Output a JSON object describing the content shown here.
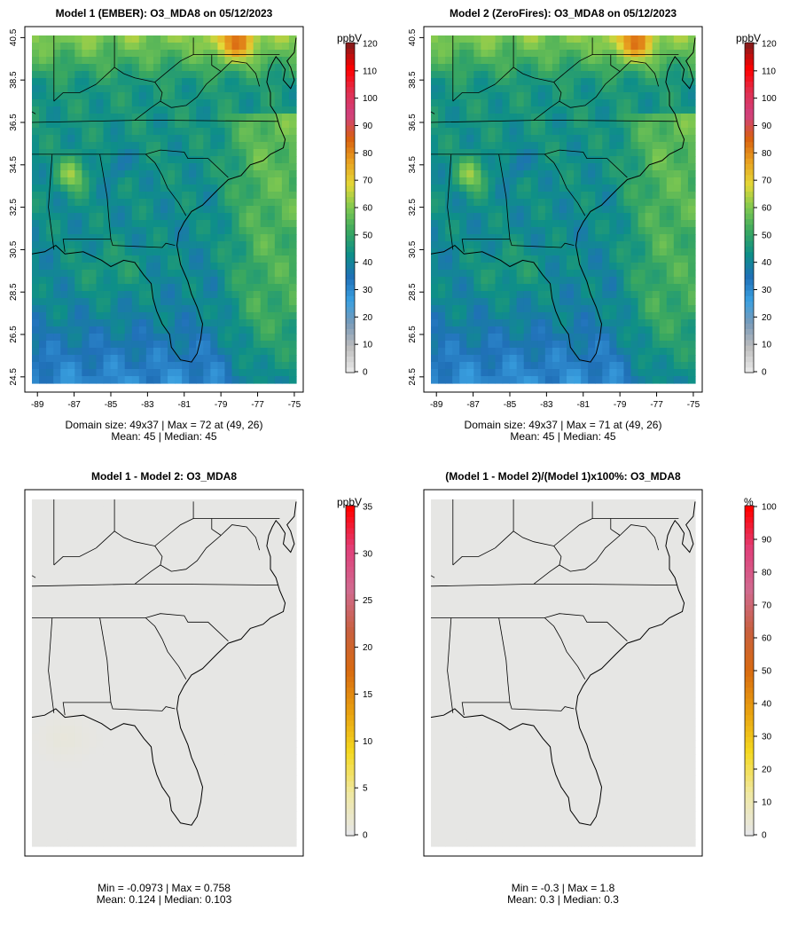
{
  "panels": [
    {
      "id": "p1",
      "title": "Model 1 (EMBER): O3_MDA8 on 05/12/2023",
      "stats_line1": "Domain size: 49x37 | Max = 72 at (49, 26)",
      "stats_line2": "Mean: 45 |  Median: 45",
      "unit": "ppbV",
      "field": "ozone",
      "x_ticks": [
        "-89",
        "-87",
        "-85",
        "-83",
        "-81",
        "-79",
        "-77",
        "-75"
      ],
      "y_ticks": [
        "24.5",
        "26.5",
        "28.5",
        "30.5",
        "32.5",
        "34.5",
        "36.5",
        "38.5",
        "40.5"
      ],
      "colorbar_ticks": [
        "0",
        "10",
        "20",
        "30",
        "40",
        "50",
        "60",
        "70",
        "80",
        "90",
        "100",
        "110",
        "120"
      ],
      "colorbar_range": [
        0,
        120
      ]
    },
    {
      "id": "p2",
      "title": "Model 2 (ZeroFires): O3_MDA8 on 05/12/2023",
      "stats_line1": "Domain size: 49x37 | Max = 71 at (49, 26)",
      "stats_line2": "Mean: 45 |  Median: 45",
      "unit": "ppbV",
      "field": "ozone",
      "x_ticks": [
        "-89",
        "-87",
        "-85",
        "-83",
        "-81",
        "-79",
        "-77",
        "-75"
      ],
      "y_ticks": [
        "24.5",
        "26.5",
        "28.5",
        "30.5",
        "32.5",
        "34.5",
        "36.5",
        "38.5",
        "40.5"
      ],
      "colorbar_ticks": [
        "0",
        "10",
        "20",
        "30",
        "40",
        "50",
        "60",
        "70",
        "80",
        "90",
        "100",
        "110",
        "120"
      ],
      "colorbar_range": [
        0,
        120
      ]
    },
    {
      "id": "p3",
      "title": "Model 1 - Model 2: O3_MDA8",
      "stats_line1": "Min = -0.0973 | Max = 0.758",
      "stats_line2": "Mean: 0.124 |  Median: 0.103",
      "unit": "ppbV",
      "field": "diff",
      "colorbar_ticks": [
        "0",
        "5",
        "10",
        "15",
        "20",
        "25",
        "30",
        "35"
      ],
      "colorbar_range": [
        0,
        35
      ]
    },
    {
      "id": "p4",
      "title": "(Model 1 - Model 2)/(Model 1)x100%: O3_MDA8",
      "stats_line1": "Min = -0.3 | Max = 1.8",
      "stats_line2": "Mean: 0.3 |  Median: 0.3",
      "unit": "%",
      "field": "pct",
      "colorbar_ticks": [
        "0",
        "10",
        "20",
        "30",
        "40",
        "50",
        "60",
        "70",
        "80",
        "90",
        "100"
      ],
      "colorbar_range": [
        0,
        100
      ]
    }
  ],
  "colors": {
    "ozone_scale": [
      "#e6e6e6",
      "#bdbdbd",
      "#7a9ab8",
      "#3aa0e0",
      "#2070b8",
      "#0e8f88",
      "#3aa860",
      "#7ec850",
      "#e3d838",
      "#e8a020",
      "#d86010",
      "#d04080",
      "#e03050",
      "#ff0000",
      "#8b1a1a"
    ],
    "diff_scale": [
      "#e6e6e6",
      "#f0e8a0",
      "#f4d820",
      "#e8a010",
      "#d86a10",
      "#c86040",
      "#d06a90",
      "#e0407a",
      "#ff0000"
    ],
    "background_na": "#e6e6e6"
  }
}
